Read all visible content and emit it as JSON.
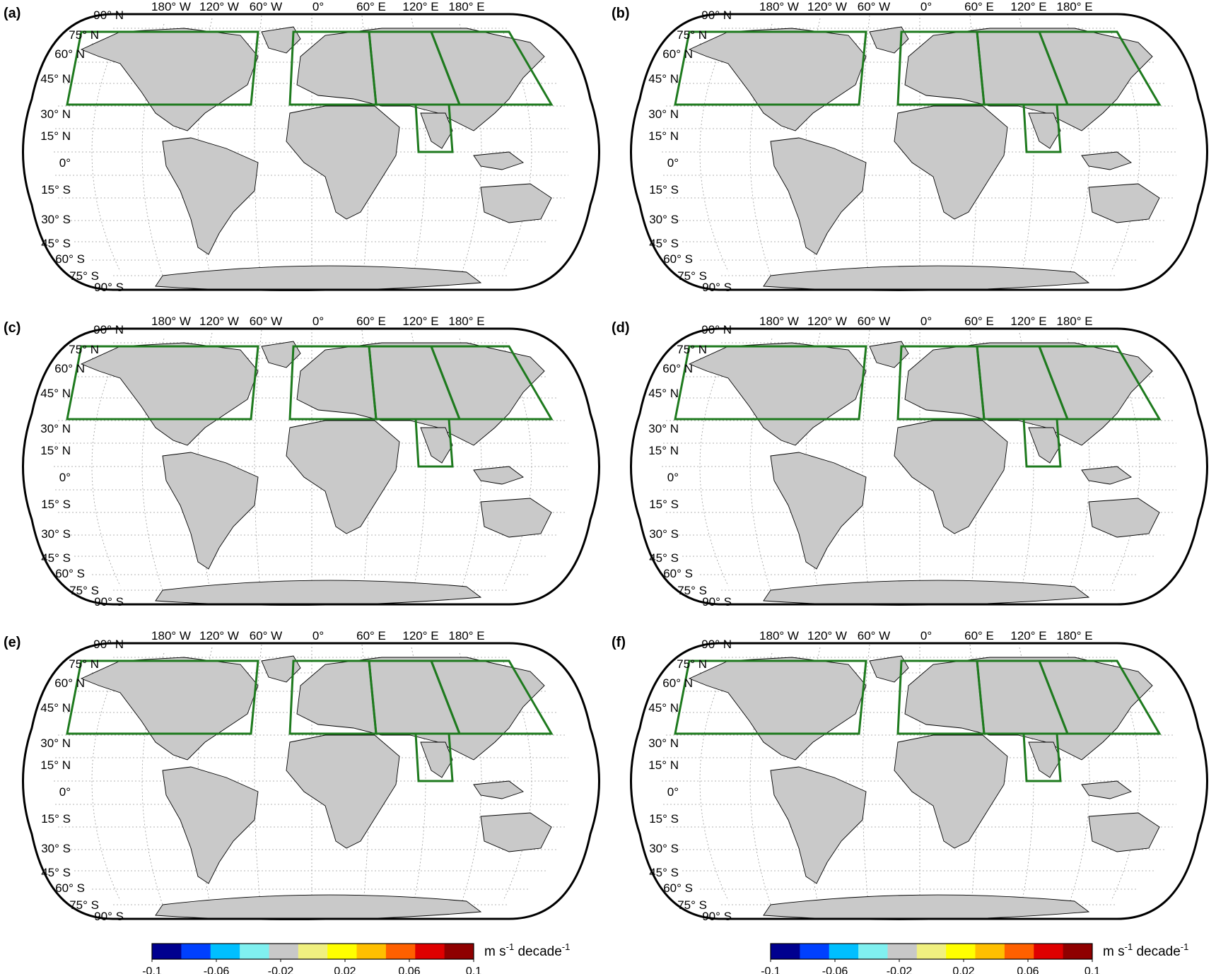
{
  "figure": {
    "panels": [
      {
        "label": "(a)",
        "lon_ticks": [
          "180° W",
          "120° W",
          "60° W",
          "0°",
          "60° E",
          "120° E",
          "180° E"
        ]
      },
      {
        "label": "(b)",
        "lon_ticks": [
          "180° W",
          "120° W",
          "60° W",
          "0°",
          "60° E",
          "120° E",
          "180° E"
        ]
      },
      {
        "label": "(c)",
        "lon_ticks": [
          "180° W",
          "120° W",
          "60° W",
          "0°",
          "60° E",
          "120° E",
          "180° E"
        ]
      },
      {
        "label": "(d)",
        "lon_ticks": [
          "180° W",
          "120° W",
          "60° W",
          "0°",
          "60° E",
          "120° E",
          "180° E"
        ]
      },
      {
        "label": "(e)",
        "lon_ticks": [
          "180° W",
          "120° W",
          "60° W",
          "0°",
          "60° E",
          "120° E",
          "180° E"
        ]
      },
      {
        "label": "(f)",
        "lon_ticks": [
          "180° W",
          "120° W",
          "60° W",
          "0°",
          "60° E",
          "120° E",
          "180° E"
        ]
      }
    ],
    "lat_ticks": [
      "90° N",
      "75° N",
      "60° N",
      "45° N",
      "30° N",
      "15° N",
      "0°",
      "15° S",
      "30° S",
      "45° S",
      "60° S",
      "75° S",
      "90° S"
    ],
    "colorbar": {
      "unit_main": "m s",
      "unit_exp1": "-1",
      "unit_mid": " decade",
      "unit_exp2": "-1",
      "tick_labels": [
        "-0.1",
        "-0.06",
        "-0.02",
        "0.02",
        "0.06",
        "0.1"
      ],
      "colors": [
        "#00008f",
        "#0040ff",
        "#00bfff",
        "#80f0f0",
        "#c8c8c8",
        "#f0f080",
        "#ffff00",
        "#ffbf00",
        "#ff6000",
        "#df0000",
        "#8f0000"
      ]
    },
    "region_box_color": "#1e7a1e"
  }
}
